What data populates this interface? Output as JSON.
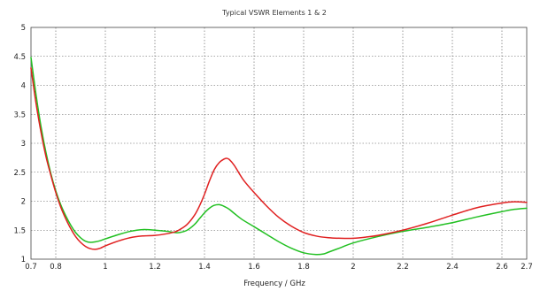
{
  "chart_data": {
    "type": "line",
    "title": "Typical VSWR Elements 1 & 2",
    "xlabel": "Frequency / GHz",
    "ylabel": "",
    "xlim": [
      0.7,
      2.7
    ],
    "ylim": [
      1,
      5
    ],
    "xticks": [
      "0.7",
      "0.8",
      "1",
      "1.2",
      "1.4",
      "1.6",
      "1.8",
      "2",
      "2.2",
      "2.4",
      "2.6",
      "2.7"
    ],
    "yticks": [
      "1",
      "1.5",
      "2",
      "2.5",
      "3",
      "3.5",
      "4",
      "4.5",
      "5"
    ],
    "grid": true,
    "legend": "none",
    "colors": {
      "series_red": "#e02020",
      "series_green": "#22c022"
    },
    "series": [
      {
        "color": "#e02020",
        "x": [
          0.7,
          0.72,
          0.74,
          0.76,
          0.78,
          0.8,
          0.82,
          0.84,
          0.86,
          0.88,
          0.9,
          0.92,
          0.94,
          0.96,
          0.98,
          1.0,
          1.05,
          1.1,
          1.15,
          1.2,
          1.25,
          1.28,
          1.3,
          1.33,
          1.36,
          1.38,
          1.4,
          1.42,
          1.44,
          1.46,
          1.48,
          1.49,
          1.5,
          1.52,
          1.54,
          1.56,
          1.6,
          1.65,
          1.7,
          1.75,
          1.8,
          1.85,
          1.9,
          1.95,
          2.0,
          2.05,
          2.1,
          2.2,
          2.3,
          2.4,
          2.5,
          2.6,
          2.65,
          2.7
        ],
        "y": [
          4.3,
          3.7,
          3.2,
          2.78,
          2.45,
          2.15,
          1.9,
          1.7,
          1.53,
          1.39,
          1.29,
          1.22,
          1.18,
          1.17,
          1.19,
          1.23,
          1.31,
          1.37,
          1.4,
          1.41,
          1.44,
          1.47,
          1.51,
          1.6,
          1.76,
          1.92,
          2.12,
          2.35,
          2.55,
          2.67,
          2.73,
          2.74,
          2.72,
          2.62,
          2.48,
          2.35,
          2.15,
          1.92,
          1.72,
          1.57,
          1.46,
          1.4,
          1.37,
          1.36,
          1.36,
          1.38,
          1.41,
          1.5,
          1.62,
          1.76,
          1.89,
          1.97,
          1.99,
          1.98
        ]
      },
      {
        "color": "#22c022",
        "x": [
          0.7,
          0.72,
          0.74,
          0.76,
          0.78,
          0.8,
          0.82,
          0.84,
          0.86,
          0.88,
          0.9,
          0.92,
          0.94,
          0.96,
          0.98,
          1.0,
          1.05,
          1.1,
          1.15,
          1.2,
          1.25,
          1.28,
          1.3,
          1.33,
          1.36,
          1.38,
          1.4,
          1.42,
          1.44,
          1.46,
          1.48,
          1.5,
          1.52,
          1.55,
          1.6,
          1.65,
          1.7,
          1.75,
          1.8,
          1.85,
          1.88,
          1.9,
          1.95,
          2.0,
          2.1,
          2.2,
          2.3,
          2.4,
          2.5,
          2.6,
          2.65,
          2.7
        ],
        "y": [
          4.48,
          3.85,
          3.3,
          2.85,
          2.48,
          2.18,
          1.94,
          1.75,
          1.59,
          1.46,
          1.37,
          1.31,
          1.29,
          1.3,
          1.32,
          1.35,
          1.42,
          1.48,
          1.51,
          1.5,
          1.48,
          1.46,
          1.46,
          1.5,
          1.6,
          1.7,
          1.8,
          1.88,
          1.93,
          1.94,
          1.91,
          1.86,
          1.79,
          1.69,
          1.56,
          1.43,
          1.3,
          1.19,
          1.11,
          1.08,
          1.09,
          1.12,
          1.2,
          1.28,
          1.39,
          1.48,
          1.55,
          1.63,
          1.73,
          1.82,
          1.86,
          1.88
        ]
      }
    ]
  }
}
